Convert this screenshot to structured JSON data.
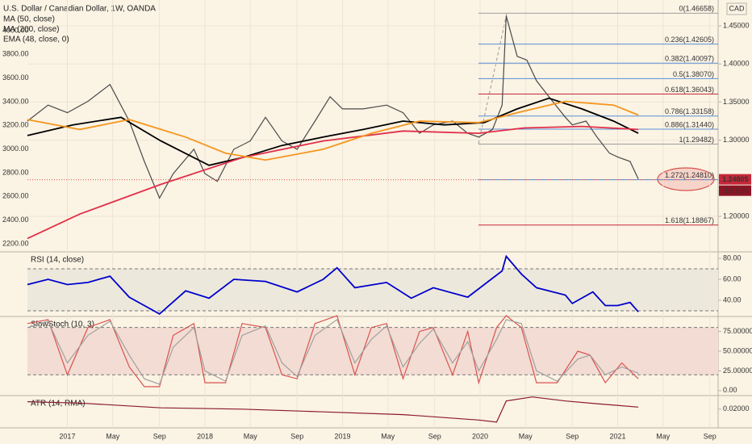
{
  "chart_data": [
    {
      "type": "line",
      "title": "U.S. Dollar / Canadian Dollar, 1W, OANDA",
      "unit_label": "CAD",
      "last_price": 1.24805,
      "countdown": "1d 10h",
      "grid": true,
      "xlim": [
        2016.71,
        2021.73
      ],
      "xticks": [
        {
          "value": 2017,
          "label": "2017"
        },
        {
          "value": 2017.33,
          "label": "May"
        },
        {
          "value": 2017.67,
          "label": "Sep"
        },
        {
          "value": 2018,
          "label": "2018"
        },
        {
          "value": 2018.33,
          "label": "May"
        },
        {
          "value": 2018.67,
          "label": "Sep"
        },
        {
          "value": 2019,
          "label": "2019"
        },
        {
          "value": 2019.33,
          "label": "May"
        },
        {
          "value": 2019.67,
          "label": "Sep"
        },
        {
          "value": 2020,
          "label": "2020"
        },
        {
          "value": 2020.33,
          "label": "May"
        },
        {
          "value": 2020.67,
          "label": "Sep"
        },
        {
          "value": 2021,
          "label": "2021"
        },
        {
          "value": 2021.33,
          "label": "May"
        },
        {
          "value": 2021.67,
          "label": "Sep"
        }
      ],
      "ylim": [
        1.1534,
        1.4839
      ],
      "yticks": [
        {
          "value": 1.2,
          "label": "1.20000"
        },
        {
          "value": 1.3,
          "label": "1.30000"
        },
        {
          "value": 1.35,
          "label": "1.35000"
        },
        {
          "value": 1.4,
          "label": "1.40000"
        },
        {
          "value": 1.45,
          "label": "1.45000"
        }
      ],
      "y2lim": [
        2132,
        4259
      ],
      "y2ticks": [
        {
          "value": 2200,
          "label": "2200.00"
        },
        {
          "value": 2400,
          "label": "2400.00"
        },
        {
          "value": 2600,
          "label": "2600.00"
        },
        {
          "value": 2800,
          "label": "2800.00"
        },
        {
          "value": 3000,
          "label": "3000.00"
        },
        {
          "value": 3200,
          "label": "3200.00"
        },
        {
          "value": 3400,
          "label": "3400.00"
        },
        {
          "value": 3600,
          "label": "3600.00"
        },
        {
          "value": 3800,
          "label": "3800.00"
        },
        {
          "value": 4000,
          "label": "4000.00"
        }
      ],
      "fib_levels": [
        {
          "label": "0(1.46658)",
          "value": 1.46658,
          "color": "#9e9e9e"
        },
        {
          "label": "0.236(1.42605)",
          "value": 1.42605,
          "color": "#5b8fd6"
        },
        {
          "label": "0.382(1.40097)",
          "value": 1.40097,
          "color": "#5b8fd6"
        },
        {
          "label": "0.5(1.38070)",
          "value": 1.3807,
          "color": "#5b8fd6"
        },
        {
          "label": "0.618(1.36043)",
          "value": 1.36043,
          "color": "#c62839"
        },
        {
          "label": "0.786(1.33158)",
          "value": 1.33158,
          "color": "#5b8fd6"
        },
        {
          "label": "0.886(1.31440)",
          "value": 1.3144,
          "color": "#5b8fd6"
        },
        {
          "label": "1(1.29482)",
          "value": 1.29482,
          "color": "#9e9e9e"
        },
        {
          "label": "1.272(1.24810)",
          "value": 1.2481,
          "color": "#5b8fd6"
        },
        {
          "label": "1.618(1.18867)",
          "value": 1.18867,
          "color": "#c62839"
        }
      ],
      "series": [
        {
          "color": "#4a4a4a",
          "x": [
            2016.71,
            2016.86,
            2017.0,
            2017.15,
            2017.31,
            2017.45,
            2017.56,
            2017.67,
            2017.77,
            2017.92,
            2018.0,
            2018.09,
            2018.21,
            2018.33,
            2018.44,
            2018.56,
            2018.67,
            2018.8,
            2018.91,
            2019.0,
            2019.15,
            2019.32,
            2019.44,
            2019.56,
            2019.66,
            2019.8,
            2019.91,
            2019.99,
            2020.09,
            2020.16,
            2020.19,
            2020.27,
            2020.34,
            2020.41,
            2020.5,
            2020.62,
            2020.67,
            2020.77,
            2020.85,
            2020.94,
            2021.0,
            2021.09,
            2021.15
          ],
          "values": [
            1.325,
            1.346,
            1.336,
            1.351,
            1.373,
            1.325,
            1.272,
            1.224,
            1.256,
            1.288,
            1.256,
            1.246,
            1.288,
            1.299,
            1.33,
            1.299,
            1.288,
            1.325,
            1.357,
            1.341,
            1.341,
            1.346,
            1.336,
            1.309,
            1.32,
            1.325,
            1.309,
            1.304,
            1.314,
            1.346,
            1.463,
            1.41,
            1.405,
            1.378,
            1.357,
            1.33,
            1.32,
            1.325,
            1.304,
            1.283,
            1.278,
            1.272,
            1.249
          ]
        },
        {
          "name": "MA (50, close)",
          "color": "#000000",
          "x": [
            2016.71,
            2017.04,
            2017.39,
            2017.68,
            2018.03,
            2018.27,
            2018.56,
            2018.86,
            2019.15,
            2019.44,
            2019.74,
            2020.03,
            2020.27,
            2020.5,
            2020.74,
            2020.97,
            2021.15
          ],
          "values": [
            1.306,
            1.32,
            1.33,
            1.299,
            1.267,
            1.277,
            1.293,
            1.304,
            1.314,
            1.325,
            1.32,
            1.323,
            1.341,
            1.355,
            1.341,
            1.325,
            1.309
          ]
        },
        {
          "name": "MA (200, close)",
          "color": "#e0304a",
          "x": [
            2016.71,
            2017.09,
            2017.68,
            2018.27,
            2018.86,
            2019.44,
            2019.99,
            2020.32,
            2020.74,
            2021.15
          ],
          "values": [
            1.171,
            1.203,
            1.242,
            1.277,
            1.299,
            1.312,
            1.309,
            1.316,
            1.318,
            1.314
          ]
        },
        {
          "name": "EMA (48, close, 0)",
          "color": "#f5961e",
          "x": [
            2016.71,
            2017.09,
            2017.45,
            2017.86,
            2018.15,
            2018.44,
            2018.86,
            2019.21,
            2019.56,
            2019.99,
            2020.27,
            2020.62,
            2020.97,
            2021.15
          ],
          "values": [
            1.327,
            1.314,
            1.327,
            1.304,
            1.283,
            1.274,
            1.288,
            1.309,
            1.325,
            1.323,
            1.336,
            1.351,
            1.346,
            1.333
          ]
        }
      ]
    },
    {
      "type": "line",
      "title": "RSI (14, close)",
      "ylim": [
        24.6,
        86.2
      ],
      "bands": [
        70,
        30
      ],
      "band_fill": "#ece9dc",
      "yticks": [
        {
          "value": 40,
          "label": "40.00"
        },
        {
          "value": 60,
          "label": "60.00"
        },
        {
          "value": 80,
          "label": "80.00"
        }
      ],
      "series": [
        {
          "color": "#0000cc",
          "x": [
            2016.71,
            2016.86,
            2017.0,
            2017.15,
            2017.31,
            2017.45,
            2017.56,
            2017.67,
            2017.86,
            2018.03,
            2018.21,
            2018.44,
            2018.67,
            2018.86,
            2018.96,
            2019.09,
            2019.32,
            2019.5,
            2019.66,
            2019.91,
            2020.06,
            2020.16,
            2020.19,
            2020.3,
            2020.41,
            2020.62,
            2020.67,
            2020.82,
            2020.91,
            2021.0,
            2021.09,
            2021.15
          ],
          "values": [
            55,
            60,
            55,
            57,
            63,
            43,
            35,
            27,
            49,
            42,
            60,
            58,
            48,
            60,
            71,
            52,
            57,
            42,
            52,
            43,
            58,
            68,
            82,
            65,
            52,
            45,
            37,
            48,
            35,
            35,
            38,
            29
          ]
        }
      ]
    },
    {
      "type": "line",
      "title": "SlowStoch (10, 3)",
      "ylim": [
        -6.3,
        94
      ],
      "bands": [
        80,
        20
      ],
      "band_fill": "#f3dcd3",
      "yticks": [
        {
          "value": 0,
          "label": "0.00"
        },
        {
          "value": 25,
          "label": "25.00000"
        },
        {
          "value": 50,
          "label": "50.00000"
        },
        {
          "value": 75,
          "label": "75.00000"
        }
      ],
      "series": [
        {
          "color": "#d9534f",
          "x": [
            2016.71,
            2016.86,
            2017.0,
            2017.15,
            2017.31,
            2017.45,
            2017.56,
            2017.67,
            2017.77,
            2017.92,
            2018.0,
            2018.15,
            2018.27,
            2018.44,
            2018.56,
            2018.67,
            2018.8,
            2018.96,
            2019.09,
            2019.21,
            2019.32,
            2019.44,
            2019.56,
            2019.66,
            2019.8,
            2019.91,
            2019.99,
            2020.12,
            2020.19,
            2020.3,
            2020.41,
            2020.56,
            2020.71,
            2020.8,
            2020.91,
            2021.03,
            2021.15
          ],
          "values": [
            85,
            90,
            20,
            80,
            90,
            30,
            5,
            5,
            70,
            85,
            10,
            10,
            85,
            80,
            20,
            15,
            85,
            95,
            20,
            80,
            85,
            15,
            75,
            80,
            20,
            75,
            10,
            80,
            95,
            80,
            10,
            10,
            50,
            45,
            10,
            35,
            15
          ]
        },
        {
          "color": "#a0a0a0",
          "x": [
            2016.71,
            2016.86,
            2017.0,
            2017.15,
            2017.31,
            2017.45,
            2017.56,
            2017.67,
            2017.77,
            2017.92,
            2018.0,
            2018.15,
            2018.27,
            2018.44,
            2018.56,
            2018.67,
            2018.8,
            2018.96,
            2019.09,
            2019.21,
            2019.32,
            2019.44,
            2019.56,
            2019.66,
            2019.8,
            2019.91,
            2019.99,
            2020.12,
            2020.19,
            2020.3,
            2020.41,
            2020.56,
            2020.71,
            2020.8,
            2020.91,
            2021.03,
            2021.15
          ],
          "values": [
            80,
            88,
            35,
            70,
            88,
            45,
            15,
            8,
            55,
            80,
            25,
            12,
            70,
            82,
            35,
            18,
            70,
            90,
            35,
            65,
            82,
            30,
            60,
            78,
            35,
            62,
            25,
            65,
            90,
            85,
            25,
            12,
            40,
            45,
            20,
            30,
            22
          ]
        }
      ]
    },
    {
      "type": "line",
      "title": "ATR (14, RMA)",
      "ylim": [
        0.00625,
        0.03
      ],
      "yticks": [
        {
          "value": 0.02,
          "label": "0.02000"
        }
      ],
      "series": [
        {
          "color": "#8b1a2f",
          "x": [
            2016.71,
            2017.09,
            2017.68,
            2018.27,
            2018.86,
            2019.44,
            2019.99,
            2020.12,
            2020.19,
            2020.38,
            2020.62,
            2020.85,
            2021.15
          ],
          "values": [
            0.0255,
            0.0245,
            0.021,
            0.02,
            0.018,
            0.016,
            0.012,
            0.0105,
            0.026,
            0.029,
            0.026,
            0.024,
            0.0215
          ]
        }
      ]
    }
  ]
}
